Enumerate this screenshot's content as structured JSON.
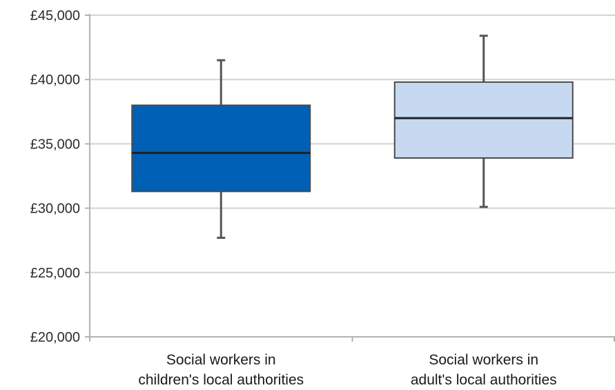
{
  "chart_data": {
    "type": "box",
    "title": "",
    "xlabel": "",
    "ylabel": "",
    "ylim": [
      20000,
      45000
    ],
    "y_ticks": [
      20000,
      25000,
      30000,
      35000,
      40000,
      45000
    ],
    "y_tick_labels": [
      "£20,000",
      "£25,000",
      "£30,000",
      "£35,000",
      "£40,000",
      "£45,000"
    ],
    "grid": true,
    "categories": [
      [
        "Social workers in",
        "children's local authorities"
      ],
      [
        "Social workers in",
        "adult's local authorities"
      ]
    ],
    "boxes": [
      {
        "min": 27700,
        "q1": 31300,
        "median": 34300,
        "q3": 38000,
        "max": 41500,
        "color": "#0060b6"
      },
      {
        "min": 30100,
        "q1": 33900,
        "median": 37000,
        "q3": 39800,
        "max": 43400,
        "color": "#c6d9f1"
      }
    ]
  }
}
